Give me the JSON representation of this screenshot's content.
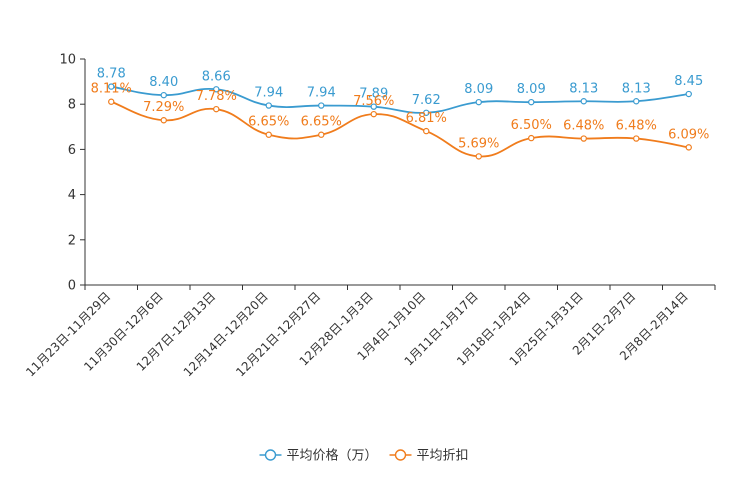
{
  "chart_data": {
    "type": "line",
    "title": "",
    "xlabel": "",
    "ylabel": "",
    "ylim": [
      0,
      10
    ],
    "yticks": [
      0,
      2,
      4,
      6,
      8,
      10
    ],
    "grid": false,
    "legend_position": "bottom-center",
    "categories": [
      "11月23日-11月29日",
      "11月30日-12月6日",
      "12月7日-12月13日",
      "12月14日-12月20日",
      "12月21日-12月27日",
      "12月28日-1月3日",
      "1月4日-1月10日",
      "1月11日-1月17日",
      "1月18日-1月24日",
      "1月25日-1月31日",
      "2月1日-2月7日",
      "2月8日-2月14日"
    ],
    "series": [
      {
        "name": "平均价格（万）",
        "color": "#3a9bd0",
        "values": [
          8.78,
          8.4,
          8.66,
          7.94,
          7.94,
          7.89,
          7.62,
          8.09,
          8.09,
          8.13,
          8.13,
          8.45
        ],
        "labels": [
          "8.78",
          "8.40",
          "8.66",
          "7.94",
          "7.94",
          "7.89",
          "7.62",
          "8.09",
          "8.09",
          "8.13",
          "8.13",
          "8.45"
        ]
      },
      {
        "name": "平均折扣",
        "color": "#f07c1c",
        "values": [
          8.11,
          7.29,
          7.78,
          6.65,
          6.65,
          7.56,
          6.81,
          5.69,
          6.5,
          6.48,
          6.48,
          6.09
        ],
        "labels": [
          "8.11%",
          "7.29%",
          "7.78%",
          "6.65%",
          "6.65%",
          "7.56%",
          "6.81%",
          "5.69%",
          "6.50%",
          "6.48%",
          "6.48%",
          "6.09%"
        ]
      }
    ]
  }
}
